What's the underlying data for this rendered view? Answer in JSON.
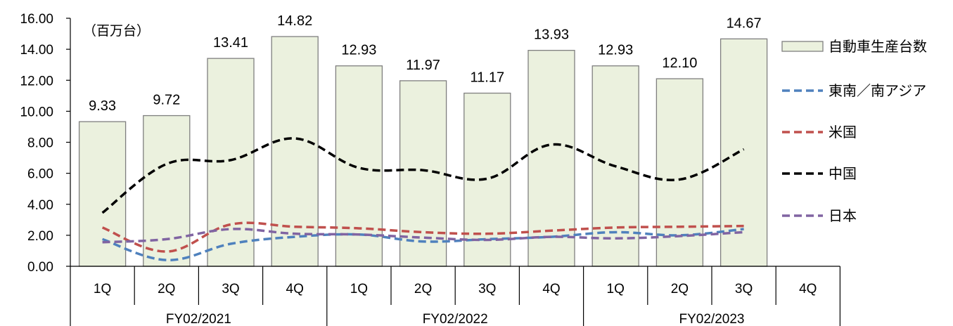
{
  "chart_data": {
    "type": "bar",
    "unit_label": "（百万台）",
    "categories": [
      "1Q",
      "2Q",
      "3Q",
      "4Q",
      "1Q",
      "2Q",
      "3Q",
      "4Q",
      "1Q",
      "2Q",
      "3Q",
      "4Q"
    ],
    "groups": [
      {
        "label": "FY02/2021",
        "span": 4
      },
      {
        "label": "FY02/2022",
        "span": 4
      },
      {
        "label": "FY02/2023",
        "span": 4
      }
    ],
    "ylim": [
      0,
      16
    ],
    "yticks": [
      "0.00",
      "2.00",
      "4.00",
      "6.00",
      "8.00",
      "10.00",
      "12.00",
      "14.00",
      "16.00"
    ],
    "grid": false,
    "legend_position": "right",
    "bar_series": {
      "name": "自動車生産台数",
      "values": [
        9.33,
        9.72,
        13.41,
        14.82,
        12.93,
        11.97,
        11.17,
        13.93,
        12.93,
        12.1,
        14.67,
        null
      ],
      "labels": [
        "9.33",
        "9.72",
        "13.41",
        "14.82",
        "12.93",
        "11.97",
        "11.17",
        "13.93",
        "12.93",
        "12.10",
        "14.67",
        ""
      ],
      "color": "#ebf1de",
      "border": "#7f7f7f"
    },
    "line_series": [
      {
        "name": "東南／南アジア",
        "color": "#4f81bd",
        "values": [
          1.75,
          0.4,
          1.45,
          1.9,
          2.05,
          1.6,
          1.75,
          1.9,
          2.2,
          2.0,
          2.4,
          null
        ]
      },
      {
        "name": "米国",
        "color": "#c0504d",
        "values": [
          2.5,
          0.95,
          2.7,
          2.55,
          2.45,
          2.2,
          2.1,
          2.3,
          2.5,
          2.55,
          2.6,
          null
        ]
      },
      {
        "name": "中国",
        "color": "#000000",
        "values": [
          3.45,
          6.6,
          6.85,
          8.25,
          6.35,
          6.2,
          5.65,
          7.85,
          6.45,
          5.6,
          7.55,
          null
        ]
      },
      {
        "name": "日本",
        "color": "#8064a2",
        "values": [
          1.55,
          1.75,
          2.4,
          2.1,
          2.05,
          1.85,
          1.7,
          1.9,
          1.8,
          1.95,
          2.2,
          null
        ]
      }
    ]
  }
}
